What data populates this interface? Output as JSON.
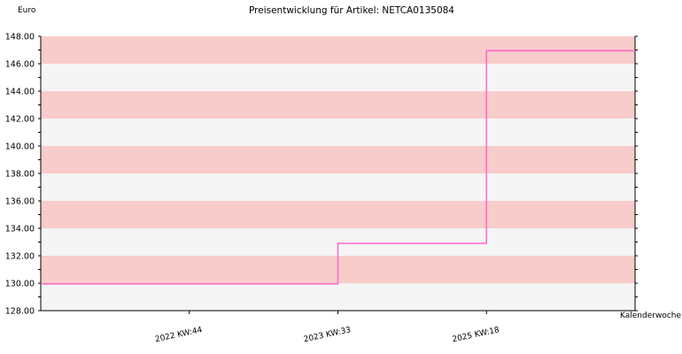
{
  "chart_data": {
    "type": "line",
    "title": "Preisentwicklung für Artikel: NETCA0135084",
    "ylabel": "Euro",
    "xlabel": "Kalenderwoche",
    "ylim": [
      128,
      148
    ],
    "yticks": [
      128,
      130,
      132,
      134,
      136,
      138,
      140,
      142,
      144,
      146,
      148
    ],
    "x_labels": [
      "2022 KW:44",
      "2023 KW:33",
      "2025 KW:18"
    ],
    "step": true,
    "grid": "horizontal bands",
    "colors": {
      "line": "#ff66cc",
      "band_a": "#f9cccc",
      "band_b": "#f5f5f5"
    },
    "series": [
      {
        "values": [
          129.95,
          129.95,
          132.9,
          146.95
        ]
      }
    ]
  }
}
